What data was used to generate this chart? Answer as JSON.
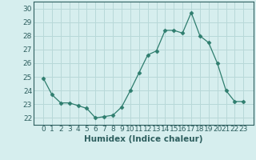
{
  "x": [
    0,
    1,
    2,
    3,
    4,
    5,
    6,
    7,
    8,
    9,
    10,
    11,
    12,
    13,
    14,
    15,
    16,
    17,
    18,
    19,
    20,
    21,
    22,
    23
  ],
  "y": [
    24.9,
    23.7,
    23.1,
    23.1,
    22.9,
    22.7,
    22.0,
    22.1,
    22.2,
    22.8,
    24.0,
    25.3,
    26.6,
    26.9,
    28.4,
    28.4,
    28.2,
    29.7,
    28.0,
    27.5,
    26.0,
    24.0,
    23.2,
    23.2
  ],
  "line_color": "#2e7d6e",
  "marker": "D",
  "marker_size": 2.5,
  "bg_color": "#d6eeee",
  "grid_color": "#b8d8d8",
  "xlabel": "Humidex (Indice chaleur)",
  "ylim": [
    21.5,
    30.5
  ],
  "yticks": [
    22,
    23,
    24,
    25,
    26,
    27,
    28,
    29,
    30
  ],
  "xticks": [
    0,
    1,
    2,
    3,
    4,
    5,
    6,
    7,
    8,
    9,
    10,
    11,
    12,
    13,
    14,
    15,
    16,
    17,
    18,
    19,
    20,
    21,
    22,
    23
  ],
  "tick_color": "#2e5f5f",
  "label_color": "#2e5f5f",
  "tick_fontsize": 6.5,
  "xlabel_fontsize": 7.5
}
